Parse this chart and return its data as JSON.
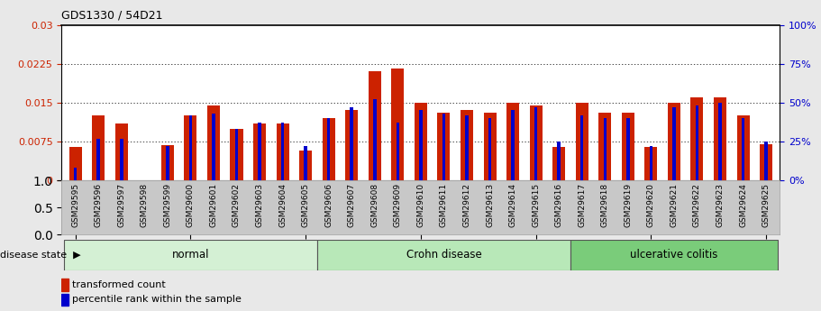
{
  "title": "GDS1330 / 54D21",
  "samples": [
    "GSM29595",
    "GSM29596",
    "GSM29597",
    "GSM29598",
    "GSM29599",
    "GSM29600",
    "GSM29601",
    "GSM29602",
    "GSM29603",
    "GSM29604",
    "GSM29605",
    "GSM29606",
    "GSM29607",
    "GSM29608",
    "GSM29609",
    "GSM29610",
    "GSM29611",
    "GSM29612",
    "GSM29613",
    "GSM29614",
    "GSM29615",
    "GSM29616",
    "GSM29617",
    "GSM29618",
    "GSM29619",
    "GSM29620",
    "GSM29621",
    "GSM29622",
    "GSM29623",
    "GSM29624",
    "GSM29625"
  ],
  "transformed_count": [
    0.0065,
    0.0125,
    0.011,
    0.0,
    0.0068,
    0.0125,
    0.0145,
    0.01,
    0.011,
    0.011,
    0.0058,
    0.012,
    0.0135,
    0.021,
    0.0215,
    0.015,
    0.013,
    0.0135,
    0.013,
    0.015,
    0.0145,
    0.0065,
    0.015,
    0.013,
    0.013,
    0.0065,
    0.015,
    0.016,
    0.016,
    0.0125,
    0.007
  ],
  "percentile_rank": [
    8,
    27,
    27,
    0,
    22,
    42,
    43,
    33,
    37,
    37,
    22,
    40,
    47,
    52,
    37,
    45,
    43,
    42,
    40,
    45,
    47,
    25,
    42,
    40,
    40,
    22,
    47,
    48,
    50,
    40,
    25
  ],
  "group_defs": [
    {
      "start": 0,
      "end": 10,
      "label": "normal",
      "color": "#d4f0d4"
    },
    {
      "start": 11,
      "end": 21,
      "label": "Crohn disease",
      "color": "#b8e8b8"
    },
    {
      "start": 22,
      "end": 30,
      "label": "ulcerative colitis",
      "color": "#7acc7a"
    }
  ],
  "ylim_left": [
    0,
    0.03
  ],
  "ylim_right": [
    0,
    100
  ],
  "yticks_left": [
    0,
    0.0075,
    0.015,
    0.0225,
    0.03
  ],
  "yticks_right": [
    0,
    25,
    50,
    75,
    100
  ],
  "bar_color": "#cc2200",
  "marker_color": "#0000cc",
  "fig_bg": "#e8e8e8",
  "plot_bg": "#ffffff",
  "xtick_bg": "#c8c8c8"
}
